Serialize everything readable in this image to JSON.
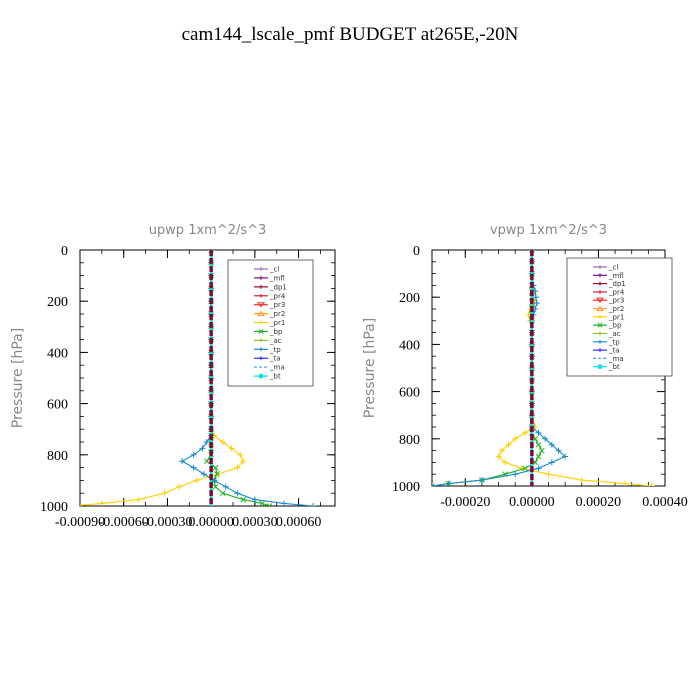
{
  "figure": {
    "title": "cam144_lscale_pmf  BUDGET at265E,-20N"
  },
  "chart_data": [
    {
      "type": "line",
      "title": "upwp   1xm^2/s^3",
      "ylabel": "Pressure [hPa]",
      "xlim": [
        -0.0009,
        0.00085
      ],
      "ylim": [
        1000,
        0
      ],
      "xticks": [
        -0.0009,
        -0.0006,
        -0.0003,
        0.0,
        0.0003,
        0.0006
      ],
      "xtick_labels": [
        "-0.00090",
        "-0.00060",
        "-0.00030",
        "0.00000",
        "0.00030",
        "0.00060"
      ],
      "yticks": [
        0,
        200,
        400,
        600,
        800,
        1000
      ],
      "ytick_labels": [
        "0",
        "200",
        "400",
        "600",
        "800",
        "1000"
      ],
      "legend_position": "top-right",
      "pressure": [
        0,
        50,
        100,
        150,
        200,
        250,
        300,
        350,
        400,
        450,
        500,
        550,
        600,
        650,
        700,
        725,
        750,
        775,
        800,
        825,
        850,
        875,
        900,
        925,
        950,
        975,
        990,
        1000
      ],
      "series": [
        {
          "name": "_cl",
          "color": "#9a6bb0",
          "marker": "+",
          "values": [
            0,
            0,
            0,
            0,
            0,
            0,
            0,
            0,
            0,
            0,
            0,
            0,
            0,
            0,
            0,
            0,
            0,
            0,
            0,
            0,
            0,
            0,
            0,
            0,
            0,
            0,
            0,
            0
          ]
        },
        {
          "name": "_mfl",
          "color": "#7a0a7a",
          "marker": "+",
          "values": [
            0,
            0,
            0,
            0,
            0,
            0,
            0,
            0,
            0,
            0,
            0,
            0,
            0,
            0,
            0,
            0,
            0,
            0,
            0,
            0,
            0,
            0,
            0,
            0,
            0,
            0,
            0,
            0
          ]
        },
        {
          "name": "_dp1",
          "color": "#8b0a3a",
          "marker": "+",
          "values": [
            0,
            0,
            0,
            0,
            0,
            0,
            0,
            0,
            0,
            0,
            0,
            0,
            0,
            0,
            0,
            0,
            0,
            0,
            0,
            0,
            0,
            0,
            0,
            0,
            0,
            0,
            0,
            0
          ]
        },
        {
          "name": "_pr4",
          "color": "#d0203a",
          "marker": "+",
          "values": [
            0,
            0,
            0,
            0,
            0,
            0,
            0,
            0,
            0,
            0,
            0,
            0,
            0,
            0,
            0,
            0,
            0,
            0,
            0,
            0,
            0,
            0,
            0,
            0,
            0,
            0,
            0,
            0
          ]
        },
        {
          "name": "_pr3",
          "color": "#ff2a2a",
          "marker": "v",
          "values": [
            0,
            0,
            0,
            0,
            0,
            0,
            0,
            0,
            0,
            0,
            0,
            0,
            0,
            0,
            0,
            0,
            0,
            0,
            0,
            0,
            0,
            0,
            0,
            0,
            0,
            0,
            0,
            0
          ]
        },
        {
          "name": "_pr2",
          "color": "#ff9a2a",
          "marker": "^",
          "values": [
            0,
            0,
            0,
            0,
            0,
            0,
            0,
            0,
            0,
            0,
            0,
            0,
            0,
            0,
            0,
            0,
            0,
            0,
            0,
            0,
            0,
            0,
            0,
            0,
            0,
            0,
            0,
            0
          ]
        },
        {
          "name": "_pr1",
          "color": "#ffd000",
          "marker": "+",
          "values": [
            0,
            0,
            0,
            0,
            0,
            0,
            0,
            0,
            0,
            0,
            0,
            0,
            0,
            0,
            0,
            2e-05,
            8e-05,
            0.00014,
            0.0002,
            0.00022,
            0.00018,
            5e-05,
            -0.0001,
            -0.00022,
            -0.00032,
            -0.0005,
            -0.00075,
            -0.00095
          ]
        },
        {
          "name": "_bp",
          "color": "#20b020",
          "marker": "x",
          "values": [
            0,
            0,
            0,
            0,
            0,
            0,
            0,
            0,
            0,
            0,
            0,
            0,
            0,
            0,
            0,
            0,
            0,
            0,
            0,
            -3e-05,
            3e-05,
            4e-05,
            2e-05,
            3e-05,
            8e-05,
            0.00022,
            0.00035,
            0.0004
          ]
        },
        {
          "name": "_ac",
          "color": "#90c030",
          "marker": "+",
          "values": [
            0,
            0,
            0,
            0,
            0,
            0,
            0,
            0,
            0,
            0,
            0,
            0,
            0,
            0,
            0,
            0,
            0,
            0,
            0,
            0,
            0,
            0,
            0,
            0,
            0,
            0,
            0,
            0
          ]
        },
        {
          "name": "_tp",
          "color": "#1a8ad0",
          "marker": "+",
          "values": [
            0,
            0,
            0,
            0,
            0,
            0,
            0,
            0,
            0,
            0,
            0,
            0,
            0,
            0,
            0,
            0,
            -3e-05,
            -6e-05,
            -0.00012,
            -0.0002,
            -0.00012,
            -5e-05,
            2e-05,
            0.0001,
            0.00018,
            0.0003,
            0.0005,
            0.0007
          ]
        },
        {
          "name": "_ta",
          "color": "#2a2aff",
          "marker": "+",
          "values": [
            0,
            0,
            0,
            0,
            0,
            0,
            0,
            0,
            0,
            0,
            0,
            0,
            0,
            0,
            0,
            0,
            0,
            0,
            0,
            0,
            0,
            0,
            0,
            0,
            0,
            0,
            0,
            0
          ]
        },
        {
          "name": "_ma",
          "color": "#4aa8e0",
          "marker": "-",
          "values": [
            0,
            0,
            0,
            0,
            0,
            0,
            0,
            0,
            0,
            0,
            0,
            0,
            0,
            0,
            0,
            0,
            0,
            0,
            0,
            0,
            0,
            0,
            0,
            0,
            0,
            0,
            0,
            0
          ]
        },
        {
          "name": "_bt",
          "color": "#00e0e8",
          "marker": "o",
          "values": [
            0,
            0,
            0,
            0,
            0,
            0,
            0,
            0,
            0,
            0,
            0,
            0,
            0,
            0,
            0,
            0,
            0,
            0,
            0,
            0,
            0,
            0,
            0,
            0,
            0,
            0,
            0,
            0
          ]
        }
      ]
    },
    {
      "type": "line",
      "title": "vpwp   1xm^2/s^3",
      "ylabel": "Pressure [hPa]",
      "xlim": [
        -0.0003,
        0.0004
      ],
      "ylim": [
        1000,
        0
      ],
      "xticks": [
        -0.0002,
        0.0,
        0.0002,
        0.0004
      ],
      "xtick_labels": [
        "-0.00020",
        "0.00000",
        "0.00020",
        "0.00040"
      ],
      "yticks": [
        0,
        200,
        400,
        600,
        800,
        1000
      ],
      "ytick_labels": [
        "0",
        "200",
        "400",
        "600",
        "800",
        "1000"
      ],
      "legend_position": "top-right",
      "pressure": [
        0,
        50,
        100,
        150,
        175,
        200,
        225,
        250,
        275,
        300,
        350,
        400,
        450,
        500,
        550,
        600,
        650,
        700,
        750,
        775,
        800,
        825,
        850,
        875,
        900,
        925,
        950,
        975,
        990,
        1000
      ],
      "series": [
        {
          "name": "_cl",
          "color": "#9a6bb0",
          "marker": "+",
          "values": [
            0,
            0,
            0,
            0,
            0,
            0,
            0,
            0,
            0,
            0,
            0,
            0,
            0,
            0,
            0,
            0,
            0,
            0,
            0,
            0,
            0,
            0,
            0,
            0,
            0,
            0,
            0,
            0,
            0,
            0
          ]
        },
        {
          "name": "_mfl",
          "color": "#7a0a7a",
          "marker": "+",
          "values": [
            0,
            0,
            0,
            0,
            0,
            0,
            0,
            0,
            0,
            0,
            0,
            0,
            0,
            0,
            0,
            0,
            0,
            0,
            0,
            0,
            0,
            0,
            0,
            0,
            0,
            0,
            0,
            0,
            0,
            0
          ]
        },
        {
          "name": "_dp1",
          "color": "#8b0a3a",
          "marker": "+",
          "values": [
            0,
            0,
            0,
            0,
            0,
            0,
            0,
            0,
            0,
            0,
            0,
            0,
            0,
            0,
            0,
            0,
            0,
            0,
            0,
            0,
            0,
            0,
            0,
            0,
            0,
            0,
            0,
            0,
            0,
            0
          ]
        },
        {
          "name": "_pr4",
          "color": "#d0203a",
          "marker": "+",
          "values": [
            0,
            0,
            0,
            0,
            0,
            0,
            0,
            0,
            0,
            0,
            0,
            0,
            0,
            0,
            0,
            0,
            0,
            0,
            0,
            0,
            0,
            0,
            0,
            0,
            0,
            0,
            0,
            0,
            0,
            0
          ]
        },
        {
          "name": "_pr3",
          "color": "#ff2a2a",
          "marker": "v",
          "values": [
            0,
            0,
            0,
            0,
            0,
            0,
            0,
            0,
            0,
            0,
            0,
            0,
            0,
            0,
            0,
            0,
            0,
            0,
            0,
            0,
            0,
            0,
            0,
            0,
            0,
            0,
            0,
            0,
            0,
            0
          ]
        },
        {
          "name": "_pr2",
          "color": "#ff9a2a",
          "marker": "^",
          "values": [
            0,
            0,
            0,
            0,
            0,
            0,
            0,
            0,
            0,
            0,
            0,
            0,
            0,
            0,
            0,
            0,
            0,
            0,
            0,
            0,
            0,
            0,
            0,
            0,
            0,
            0,
            0,
            0,
            0,
            0
          ]
        },
        {
          "name": "_pr1",
          "color": "#ffd000",
          "marker": "+",
          "values": [
            0,
            0,
            0,
            5e-06,
            1e-05,
            1.2e-05,
            8e-06,
            -5e-06,
            -1e-05,
            -5e-06,
            0,
            0,
            0,
            0,
            0,
            0,
            0,
            0,
            1e-05,
            -2e-05,
            -5e-05,
            -7e-05,
            -9e-05,
            -0.0001,
            -8e-05,
            -3e-05,
            5e-05,
            0.00015,
            0.00028,
            0.00036
          ]
        },
        {
          "name": "_bp",
          "color": "#20b020",
          "marker": "x",
          "values": [
            0,
            0,
            0,
            0,
            0,
            0,
            0,
            0,
            0,
            0,
            0,
            0,
            0,
            0,
            0,
            0,
            0,
            0,
            0,
            0,
            1e-05,
            2e-05,
            3e-05,
            2e-05,
            1e-05,
            -2e-05,
            -8e-05,
            -0.00015,
            -0.00025,
            -0.0003
          ]
        },
        {
          "name": "_ac",
          "color": "#90c030",
          "marker": "+",
          "values": [
            0,
            0,
            0,
            0,
            0,
            0,
            0,
            0,
            0,
            0,
            0,
            0,
            0,
            0,
            0,
            0,
            0,
            0,
            0,
            0,
            0,
            0,
            0,
            0,
            0,
            0,
            0,
            0,
            0,
            0
          ]
        },
        {
          "name": "_tp",
          "color": "#1a8ad0",
          "marker": "+",
          "values": [
            0,
            0,
            0,
            5e-06,
            1e-05,
            1.2e-05,
            1.5e-05,
            1e-05,
            5e-06,
            0,
            0,
            0,
            0,
            0,
            0,
            0,
            0,
            0,
            0,
            2e-05,
            4e-05,
            6e-05,
            8e-05,
            0.0001,
            6e-05,
            2e-05,
            -5e-05,
            -0.00015,
            -0.00025,
            -0.0003
          ]
        },
        {
          "name": "_ta",
          "color": "#2a2aff",
          "marker": "+",
          "values": [
            0,
            0,
            0,
            0,
            0,
            0,
            0,
            0,
            0,
            0,
            0,
            0,
            0,
            0,
            0,
            0,
            0,
            0,
            0,
            0,
            0,
            0,
            0,
            0,
            0,
            0,
            0,
            0,
            0,
            0
          ]
        },
        {
          "name": "_ma",
          "color": "#4aa8e0",
          "marker": "-",
          "values": [
            0,
            0,
            0,
            0,
            0,
            0,
            0,
            0,
            0,
            0,
            0,
            0,
            0,
            0,
            0,
            0,
            0,
            0,
            0,
            0,
            0,
            0,
            0,
            0,
            0,
            0,
            0,
            0,
            0,
            0
          ]
        },
        {
          "name": "_bt",
          "color": "#00e0e8",
          "marker": "o",
          "values": [
            0,
            0,
            0,
            0,
            0,
            0,
            0,
            0,
            0,
            0,
            0,
            0,
            0,
            0,
            0,
            0,
            0,
            0,
            0,
            0,
            0,
            0,
            0,
            0,
            0,
            0,
            0,
            0,
            0,
            0
          ]
        }
      ]
    }
  ]
}
